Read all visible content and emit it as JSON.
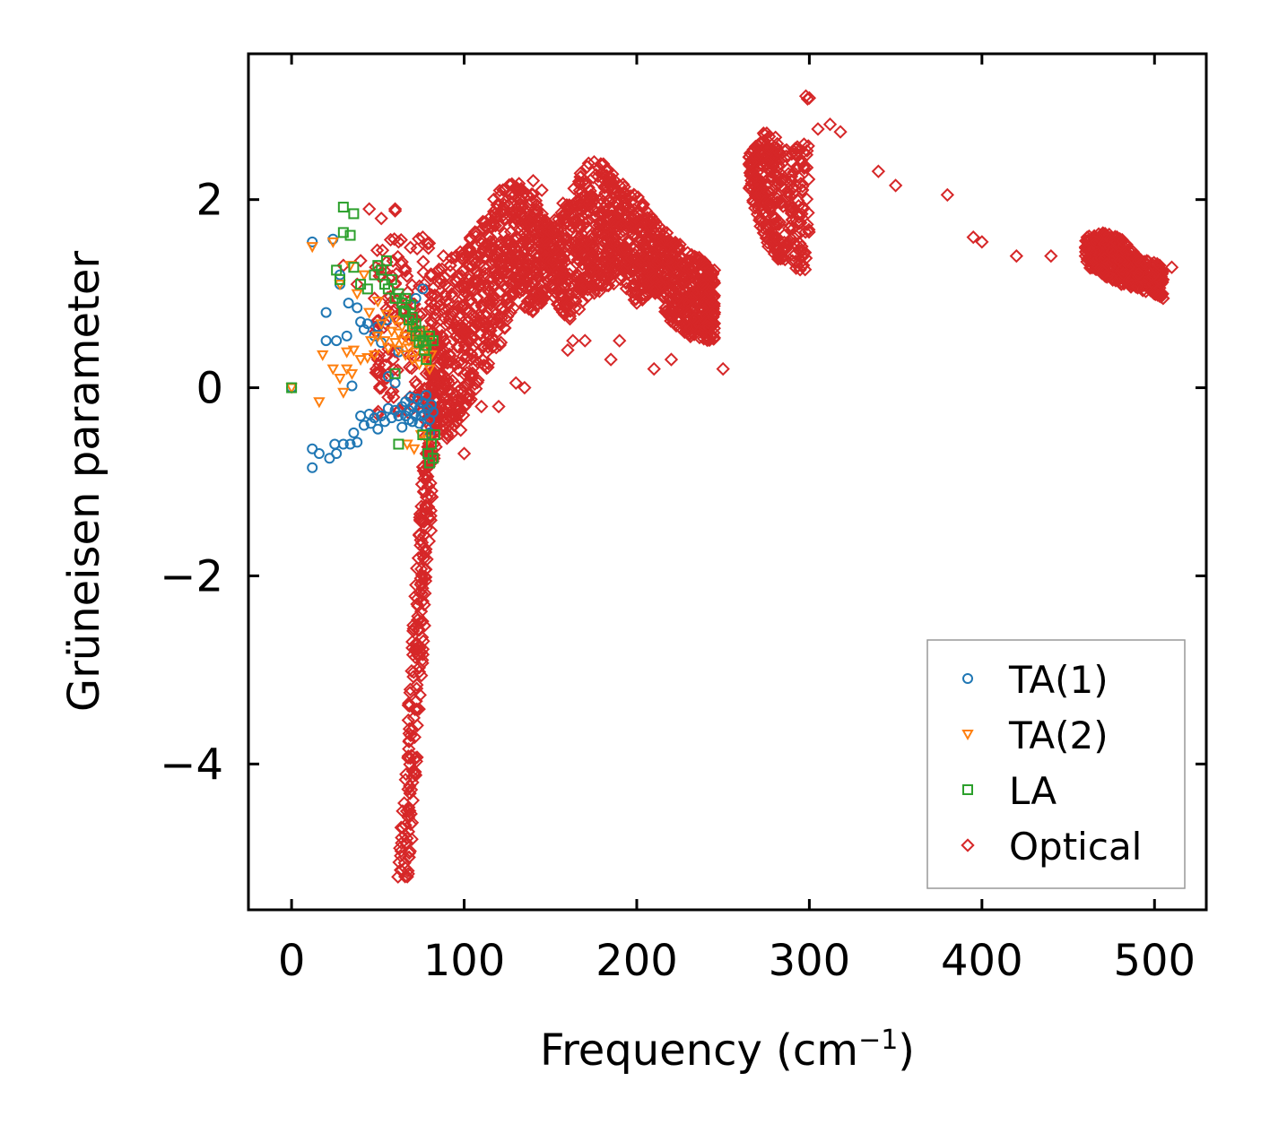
{
  "chart_data": {
    "type": "scatter",
    "xlabel": "Frequency (cm",
    "xlabel_sup": "−1",
    "xlabel_close": ")",
    "ylabel": "Grüneisen parameter",
    "xlim": [
      -25,
      530
    ],
    "ylim": [
      -5.55,
      3.55
    ],
    "xticks": [
      0,
      100,
      200,
      300,
      400,
      500
    ],
    "yticks": [
      2,
      0,
      -2,
      -4
    ],
    "ytick_labels": [
      "2",
      "0",
      "−2",
      "−4"
    ],
    "legend_position": "lower-right",
    "series": [
      {
        "name": "TA(1)",
        "marker": "circle",
        "color": "#1f77b4",
        "points": [
          [
            0,
            0
          ],
          [
            12,
            1.55
          ],
          [
            12,
            -0.85
          ],
          [
            12,
            -0.65
          ],
          [
            16,
            -0.7
          ],
          [
            20,
            0.8
          ],
          [
            20,
            0.5
          ],
          [
            22,
            -0.75
          ],
          [
            24,
            1.58
          ],
          [
            25,
            -0.6
          ],
          [
            26,
            -0.7
          ],
          [
            26,
            0.5
          ],
          [
            28,
            1.2
          ],
          [
            28,
            1.1
          ],
          [
            30,
            -0.6
          ],
          [
            32,
            0.55
          ],
          [
            33,
            0.9
          ],
          [
            34,
            -0.6
          ],
          [
            35,
            0.02
          ],
          [
            36,
            -0.48
          ],
          [
            38,
            0.85
          ],
          [
            38,
            -0.58
          ],
          [
            40,
            0.7
          ],
          [
            40,
            -0.3
          ],
          [
            42,
            -0.4
          ],
          [
            42,
            0.62
          ],
          [
            44,
            0.68
          ],
          [
            45,
            -0.28
          ],
          [
            46,
            -0.38
          ],
          [
            48,
            0.55
          ],
          [
            48,
            -0.32
          ],
          [
            50,
            0.65
          ],
          [
            50,
            -0.44
          ],
          [
            52,
            0.48
          ],
          [
            52,
            -0.3
          ],
          [
            54,
            -0.36
          ],
          [
            55,
            0.72
          ],
          [
            56,
            -0.22
          ],
          [
            56,
            0.12
          ],
          [
            58,
            -0.32
          ],
          [
            60,
            0.05
          ],
          [
            60,
            -0.24
          ],
          [
            62,
            -0.3
          ],
          [
            62,
            0.38
          ],
          [
            64,
            -0.2
          ],
          [
            64,
            -0.42
          ],
          [
            66,
            -0.15
          ],
          [
            66,
            -0.3
          ],
          [
            68,
            -0.24
          ],
          [
            68,
            -0.34
          ],
          [
            69,
            -0.1
          ],
          [
            70,
            -0.36
          ],
          [
            70,
            -0.2
          ],
          [
            71,
            -0.28
          ],
          [
            72,
            0.95
          ],
          [
            72,
            -0.3
          ],
          [
            73,
            -0.12
          ],
          [
            74,
            -0.38
          ],
          [
            74,
            -0.22
          ],
          [
            75,
            -0.3
          ],
          [
            76,
            1.05
          ],
          [
            76,
            -0.16
          ],
          [
            77,
            -0.28
          ],
          [
            78,
            -0.42
          ],
          [
            78,
            -0.08
          ],
          [
            79,
            -0.22
          ],
          [
            80,
            -0.34
          ],
          [
            80,
            -0.48
          ],
          [
            81,
            -0.18
          ],
          [
            82,
            -0.26
          ]
        ]
      },
      {
        "name": "TA(2)",
        "marker": "triangle",
        "color": "#ff7f0e",
        "points": [
          [
            0,
            0
          ],
          [
            12,
            1.5
          ],
          [
            16,
            -0.15
          ],
          [
            18,
            0.35
          ],
          [
            24,
            0.2
          ],
          [
            24,
            1.55
          ],
          [
            28,
            0.1
          ],
          [
            28,
            1.1
          ],
          [
            30,
            -0.05
          ],
          [
            32,
            0.2
          ],
          [
            32,
            0.38
          ],
          [
            34,
            1.3
          ],
          [
            35,
            0.15
          ],
          [
            36,
            0.4
          ],
          [
            38,
            1.0
          ],
          [
            40,
            0.3
          ],
          [
            42,
            1.2
          ],
          [
            44,
            0.32
          ],
          [
            45,
            0.8
          ],
          [
            46,
            0.5
          ],
          [
            48,
            0.35
          ],
          [
            50,
            0.92
          ],
          [
            50,
            0.55
          ],
          [
            52,
            0.68
          ],
          [
            54,
            0.5
          ],
          [
            55,
            0.78
          ],
          [
            56,
            0.42
          ],
          [
            58,
            0.6
          ],
          [
            60,
            0.48
          ],
          [
            60,
            0.72
          ],
          [
            62,
            0.4
          ],
          [
            62,
            0.58
          ],
          [
            64,
            0.5
          ],
          [
            64,
            0.65
          ],
          [
            66,
            0.35
          ],
          [
            66,
            0.55
          ],
          [
            67,
            -0.6
          ],
          [
            68,
            0.42
          ],
          [
            68,
            0.5
          ],
          [
            70,
            0.3
          ],
          [
            70,
            0.62
          ],
          [
            71,
            -0.65
          ],
          [
            72,
            0.48
          ],
          [
            72,
            0.38
          ],
          [
            74,
            0.52
          ],
          [
            74,
            0.25
          ],
          [
            75,
            -0.5
          ],
          [
            76,
            0.45
          ],
          [
            76,
            0.6
          ],
          [
            77,
            0.32
          ],
          [
            78,
            0.55
          ],
          [
            78,
            0.4
          ],
          [
            79,
            -0.55
          ],
          [
            80,
            0.5
          ],
          [
            80,
            0.2
          ],
          [
            81,
            0.35
          ]
        ]
      },
      {
        "name": "LA",
        "marker": "square",
        "color": "#2ca02c",
        "points": [
          [
            0,
            0
          ],
          [
            26,
            1.25
          ],
          [
            28,
            1.15
          ],
          [
            30,
            1.92
          ],
          [
            30,
            1.65
          ],
          [
            34,
            1.62
          ],
          [
            36,
            1.85
          ],
          [
            36,
            1.28
          ],
          [
            40,
            1.1
          ],
          [
            44,
            1.05
          ],
          [
            48,
            1.2
          ],
          [
            50,
            1.3
          ],
          [
            52,
            1.25
          ],
          [
            54,
            1.1
          ],
          [
            55,
            1.35
          ],
          [
            56,
            1.05
          ],
          [
            58,
            1.15
          ],
          [
            60,
            0.95
          ],
          [
            60,
            0.15
          ],
          [
            62,
            1.0
          ],
          [
            62,
            -0.6
          ],
          [
            64,
            0.9
          ],
          [
            65,
            0.82
          ],
          [
            66,
            0.95
          ],
          [
            66,
            0.8
          ],
          [
            68,
            0.72
          ],
          [
            69,
            0.88
          ],
          [
            70,
            0.75
          ],
          [
            70,
            0.65
          ],
          [
            72,
            0.68
          ],
          [
            72,
            0.55
          ],
          [
            74,
            0.6
          ],
          [
            74,
            0.48
          ],
          [
            76,
            0.5
          ],
          [
            76,
            -0.5
          ],
          [
            77,
            0.4
          ],
          [
            78,
            0.45
          ],
          [
            78,
            0.3
          ],
          [
            79,
            -0.7
          ],
          [
            80,
            -0.8
          ],
          [
            80,
            0.55
          ],
          [
            81,
            -0.6
          ],
          [
            82,
            -0.75
          ],
          [
            82,
            0.5
          ],
          [
            83,
            -0.5
          ]
        ]
      },
      {
        "name": "Optical",
        "marker": "diamond",
        "color": "#d62728",
        "generated": true,
        "points": [
          [
            60,
            1.9
          ],
          [
            60,
            1.88
          ],
          [
            52,
            1.8
          ],
          [
            62,
            1.55
          ],
          [
            45,
            1.9
          ],
          [
            40,
            1.35
          ],
          [
            38,
            1.1
          ],
          [
            48,
            0.95
          ],
          [
            50,
            0.3
          ],
          [
            52,
            0.0
          ],
          [
            55,
            0.1
          ],
          [
            30,
            1.3
          ],
          [
            76,
            1.6
          ],
          [
            88,
            1.4
          ],
          [
            92,
            1.3
          ],
          [
            95,
            -0.3
          ],
          [
            100,
            -0.7
          ],
          [
            98,
            -0.45
          ],
          [
            120,
            -0.2
          ],
          [
            110,
            -0.2
          ],
          [
            130,
            0.05
          ],
          [
            135,
            0.0
          ],
          [
            140,
            2.2
          ],
          [
            145,
            2.1
          ],
          [
            160,
            0.4
          ],
          [
            163,
            0.5
          ],
          [
            170,
            0.5
          ],
          [
            185,
            0.3
          ],
          [
            190,
            0.5
          ],
          [
            200,
            0.9
          ],
          [
            210,
            0.2
          ],
          [
            220,
            0.3
          ],
          [
            232,
            0.95
          ],
          [
            238,
            1.1
          ],
          [
            245,
            0.8
          ],
          [
            250,
            0.2
          ],
          [
            245,
            1.25
          ],
          [
            298,
            3.1
          ],
          [
            299,
            3.07
          ],
          [
            300,
            3.08
          ],
          [
            305,
            2.75
          ],
          [
            312,
            2.8
          ],
          [
            318,
            2.72
          ],
          [
            340,
            2.3
          ],
          [
            350,
            2.15
          ],
          [
            380,
            2.05
          ],
          [
            395,
            1.6
          ],
          [
            400,
            1.55
          ],
          [
            420,
            1.4
          ],
          [
            440,
            1.4
          ],
          [
            460,
            1.4
          ],
          [
            480,
            1.35
          ],
          [
            490,
            1.08
          ],
          [
            505,
            0.95
          ],
          [
            503,
            1.3
          ],
          [
            510,
            1.28
          ]
        ]
      }
    ]
  }
}
